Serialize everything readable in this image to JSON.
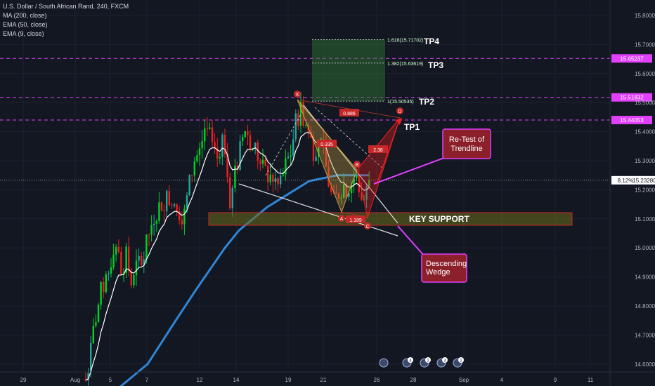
{
  "header": {
    "title": "U.S. Dollar / South African Rand, 240, FXCM",
    "indicators": [
      "MA (200, close)",
      "EMA (50, close)",
      "EMA (9, close)"
    ]
  },
  "colors": {
    "background": "#131722",
    "up": "#26a69a",
    "up_bright": "#00d12b",
    "down": "#ef1f1f",
    "ema50": "#2f86d6",
    "ema9": "#ffffff",
    "magenta": "#e040fb",
    "pattern": "#c8a040"
  },
  "chart_data": {
    "type": "candlestick",
    "y_ticks": [
      "15.80000",
      "15.70000",
      "15.60000",
      "15.50000",
      "15.40000",
      "15.30000",
      "15.20000",
      "15.10000",
      "15.00000",
      "14.90000",
      "14.80000",
      "14.70000",
      "14.60000"
    ],
    "ylim": [
      14.58,
      15.85
    ],
    "x_ticks": [
      "29",
      "Aug",
      "5",
      "7",
      "12",
      "14",
      "19",
      "21",
      "26",
      "28",
      "Sep",
      "4",
      "9",
      "11"
    ],
    "price_tags": {
      "tp_line_upper": "15.65237",
      "tp_line_mid": "15.51832",
      "tp_line_lower": "15.44053",
      "current": "15.23280",
      "current_change": "8.12%"
    },
    "targets": {
      "tp4_label": "TP4",
      "tp3_label": "TP3",
      "tp2_label": "TP2",
      "tp1_label": "TP1",
      "fib_1618": "1.618(15.71702)",
      "fib_1382": "1.382(15.63619)",
      "fib_1": "1(15.50535)"
    },
    "pattern": {
      "points": [
        "X",
        "A",
        "B",
        "C",
        "D"
      ],
      "ratio_xd": "0.886",
      "ratio_ab": "0.335",
      "ratio_ac": "1.189",
      "ratio_bd": "2.38"
    },
    "annotations": {
      "key_support": "KEY SUPPORT",
      "retest_line1": "Re-Test of",
      "retest_line2": "Trendline",
      "wedge_line1": "Descending",
      "wedge_line2": "Wedge"
    },
    "event_badges": [
      "4",
      "2",
      "3",
      "2"
    ]
  }
}
